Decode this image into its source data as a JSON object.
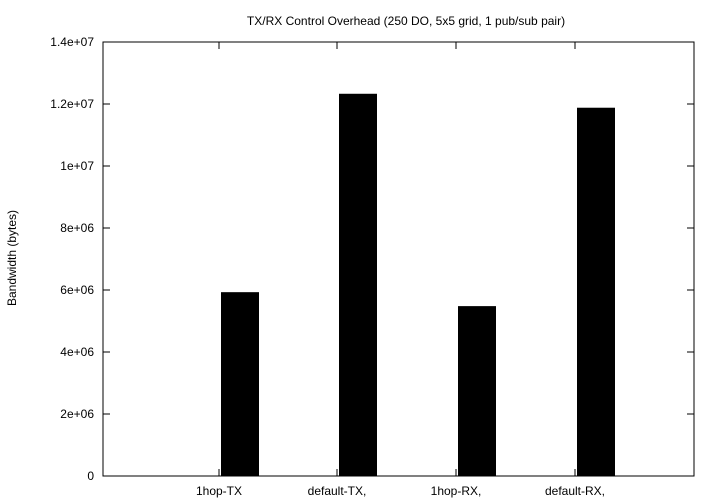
{
  "chart_data": {
    "type": "bar",
    "title": "TX/RX Control Overhead (250 DO, 5x5 grid, 1 pub/sub pair)",
    "xlabel": "",
    "ylabel": "Bandwidth (bytes)",
    "ylim": [
      0,
      14000000
    ],
    "yticks": [
      0,
      2000000,
      4000000,
      6000000,
      8000000,
      10000000,
      12000000,
      14000000
    ],
    "ytick_labels": [
      "0",
      "2e+06",
      "4e+06",
      "6e+06",
      "8e+06",
      "1e+07",
      "1.2e+07",
      "1.4e+07"
    ],
    "categories": [
      "1hop-TX",
      "default-TX,",
      "1hop-RX,",
      "default-RX,"
    ],
    "values": [
      5930000,
      12330000,
      5480000,
      11880000
    ],
    "bar_color": "#000000",
    "grid": false,
    "legend": "none"
  }
}
